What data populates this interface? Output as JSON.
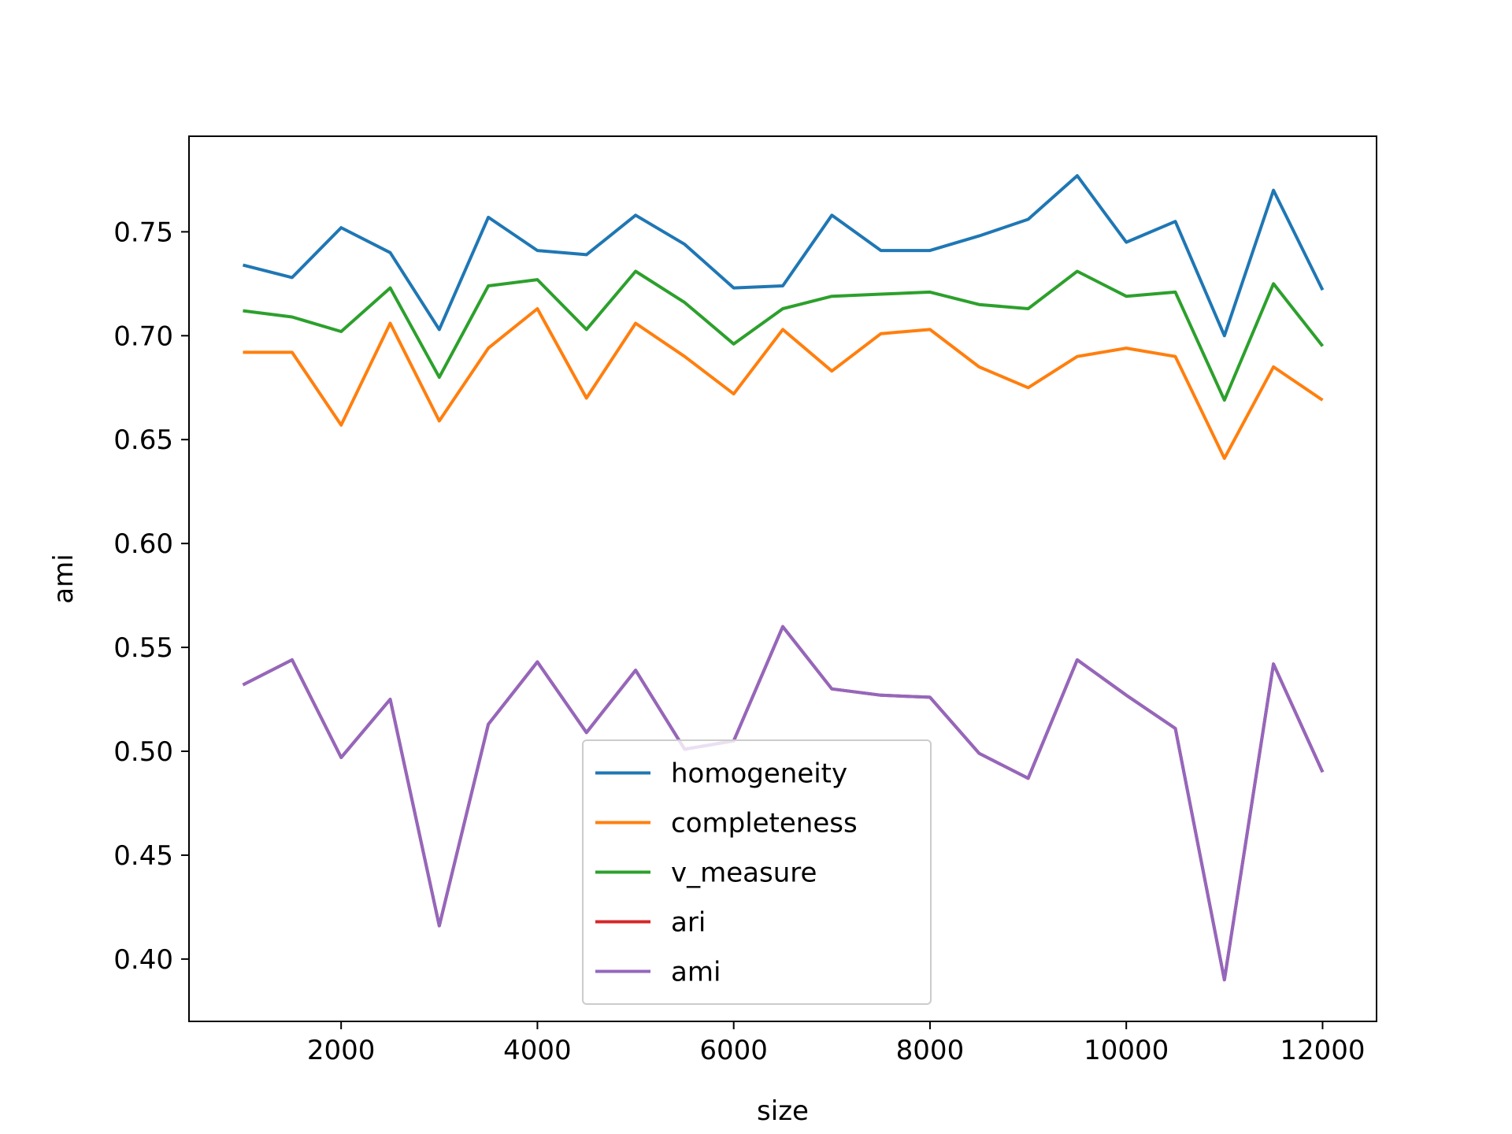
{
  "chart_data": {
    "type": "line",
    "title": "",
    "xlabel": "size",
    "ylabel": "ami",
    "xlim": [
      450,
      12550
    ],
    "ylim": [
      0.37,
      0.796
    ],
    "xticks": [
      2000,
      4000,
      6000,
      8000,
      10000,
      12000
    ],
    "xtick_labels": [
      "2000",
      "4000",
      "6000",
      "8000",
      "10000",
      "12000"
    ],
    "yticks": [
      0.4,
      0.45,
      0.5,
      0.55,
      0.6,
      0.65,
      0.7,
      0.75
    ],
    "ytick_labels": [
      "0.40",
      "0.45",
      "0.50",
      "0.55",
      "0.60",
      "0.65",
      "0.70",
      "0.75"
    ],
    "grid": false,
    "legend_position": "lower-center",
    "x": [
      1000,
      1500,
      2000,
      2500,
      3000,
      3500,
      4000,
      4500,
      5000,
      5500,
      6000,
      6500,
      7000,
      7500,
      8000,
      8500,
      9000,
      9500,
      10000,
      10500,
      11000,
      11500,
      12000
    ],
    "series": [
      {
        "name": "homogeneity",
        "color": "#1f77b4",
        "values": [
          0.734,
          0.728,
          0.752,
          0.74,
          0.703,
          0.757,
          0.741,
          0.739,
          0.758,
          0.744,
          0.723,
          0.724,
          0.758,
          0.741,
          0.741,
          0.748,
          0.756,
          0.777,
          0.745,
          0.755,
          0.7,
          0.77,
          0.722
        ]
      },
      {
        "name": "completeness",
        "color": "#ff7f0e",
        "values": [
          0.692,
          0.692,
          0.657,
          0.706,
          0.659,
          0.694,
          0.713,
          0.67,
          0.706,
          0.69,
          0.672,
          0.703,
          0.683,
          0.701,
          0.703,
          0.685,
          0.675,
          0.69,
          0.694,
          0.69,
          0.641,
          0.685,
          0.669
        ]
      },
      {
        "name": "v_measure",
        "color": "#2ca02c",
        "values": [
          0.712,
          0.709,
          0.702,
          0.723,
          0.68,
          0.724,
          0.727,
          0.703,
          0.731,
          0.716,
          0.696,
          0.713,
          0.719,
          0.72,
          0.721,
          0.715,
          0.713,
          0.731,
          0.719,
          0.721,
          0.669,
          0.725,
          0.695
        ]
      },
      {
        "name": "ari",
        "color": "#d62728",
        "values": [
          0.532,
          0.544,
          0.497,
          0.525,
          0.416,
          0.513,
          0.543,
          0.509,
          0.539,
          0.501,
          0.505,
          0.56,
          0.53,
          0.527,
          0.526,
          0.499,
          0.487,
          0.544,
          0.527,
          0.511,
          0.39,
          0.542,
          0.49
        ]
      },
      {
        "name": "ami",
        "color": "#9467bd",
        "values": [
          0.532,
          0.544,
          0.497,
          0.525,
          0.416,
          0.513,
          0.543,
          0.509,
          0.539,
          0.501,
          0.505,
          0.56,
          0.53,
          0.527,
          0.526,
          0.499,
          0.487,
          0.544,
          0.527,
          0.511,
          0.39,
          0.542,
          0.49
        ]
      }
    ]
  }
}
